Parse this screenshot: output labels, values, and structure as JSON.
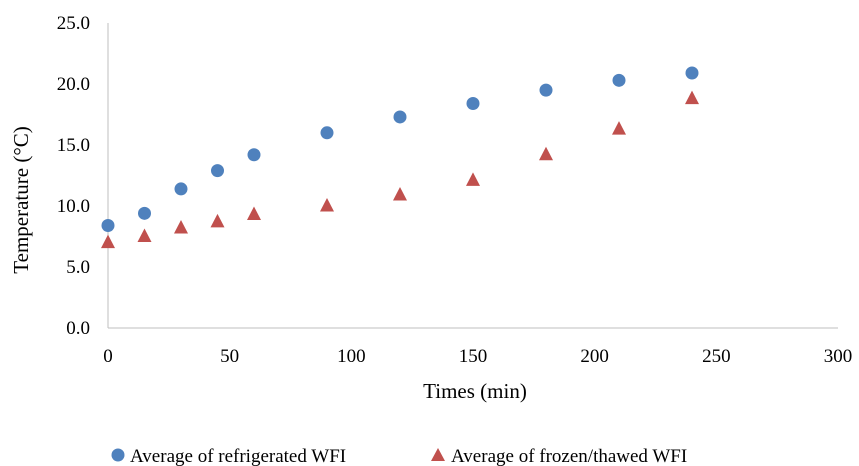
{
  "chart_data": {
    "type": "scatter",
    "xlabel": "Times (min)",
    "ylabel": "Temperature (°C)",
    "xlim": [
      0,
      300
    ],
    "ylim": [
      0,
      25
    ],
    "xticks": [
      0,
      50,
      100,
      150,
      200,
      250,
      300
    ],
    "xtick_labels": [
      "0",
      "50",
      "100",
      "150",
      "200",
      "250",
      "300"
    ],
    "yticks": [
      0,
      5,
      10,
      15,
      20,
      25
    ],
    "ytick_labels": [
      "0.0",
      "5.0",
      "10.0",
      "15.0",
      "20.0",
      "25.0"
    ],
    "grid": false,
    "legend_position": "bottom",
    "series": [
      {
        "name": "Average of refrigerated WFI",
        "marker": "circle",
        "color": "#4f81bd",
        "x": [
          0,
          15,
          30,
          45,
          60,
          90,
          120,
          150,
          180,
          210,
          240
        ],
        "y": [
          8.4,
          9.4,
          11.4,
          12.9,
          14.2,
          16.0,
          17.3,
          18.4,
          19.5,
          20.3,
          20.9
        ]
      },
      {
        "name": "Average of frozen/thawed WFI",
        "marker": "triangle",
        "color": "#c0504d",
        "x": [
          0,
          15,
          30,
          45,
          60,
          90,
          120,
          150,
          180,
          210,
          240
        ],
        "y": [
          7.0,
          7.5,
          8.2,
          8.7,
          9.3,
          10.0,
          10.9,
          12.1,
          14.2,
          16.3,
          18.8
        ]
      }
    ]
  }
}
